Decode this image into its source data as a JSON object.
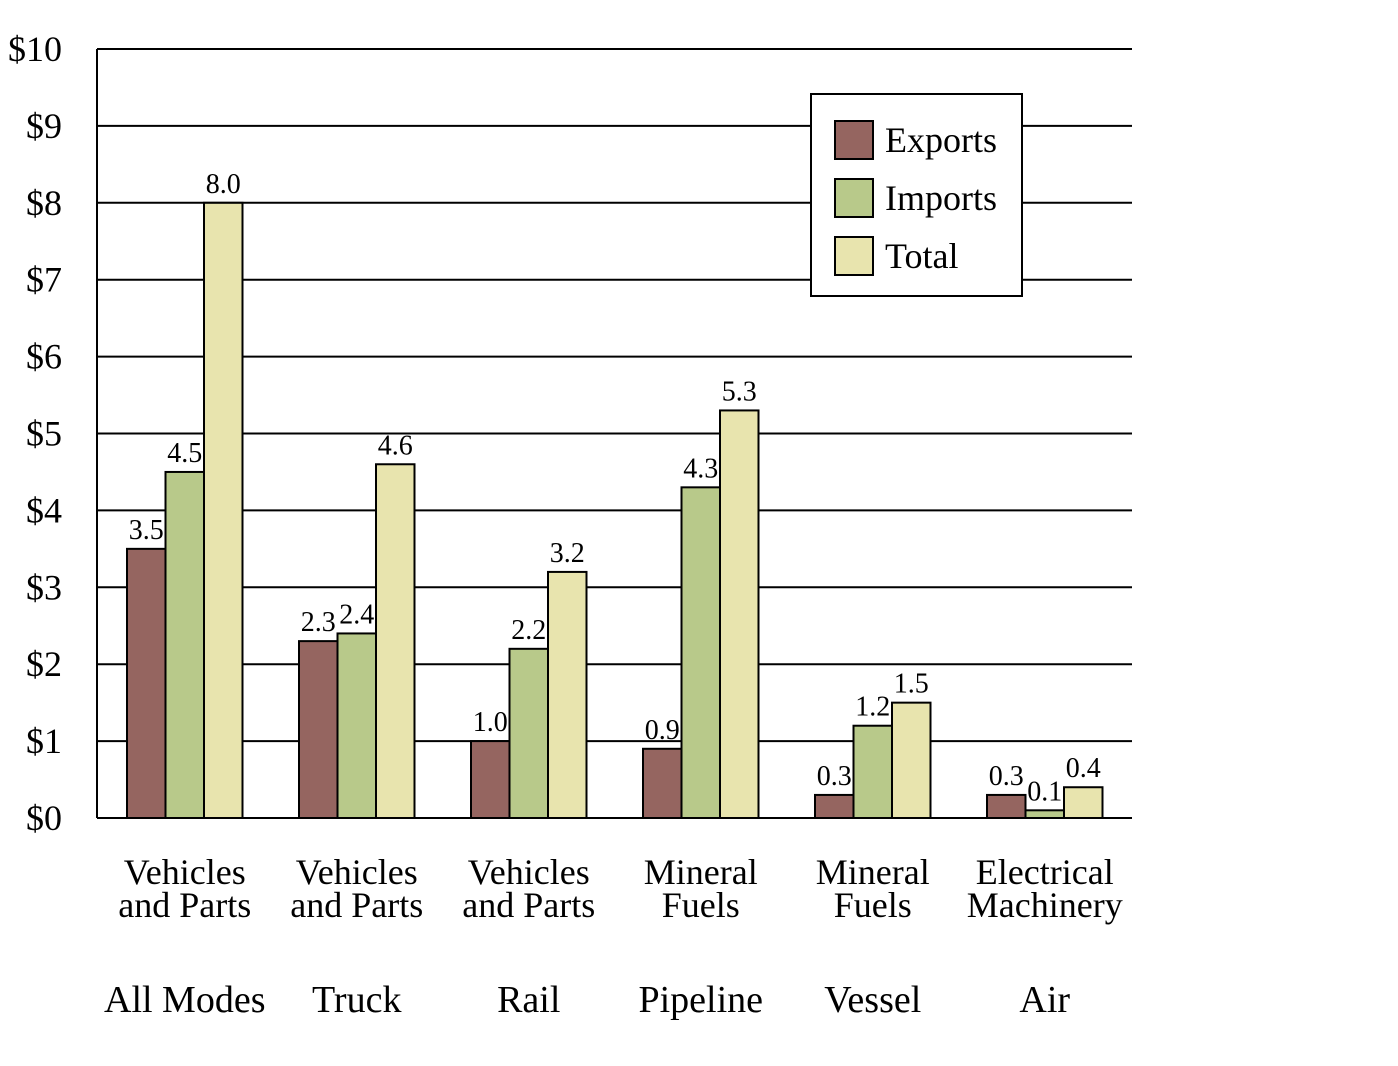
{
  "chart_data": {
    "type": "bar",
    "title": "",
    "xlabel": "",
    "ylabel": "",
    "ylim": [
      0,
      10
    ],
    "yticks": [
      {
        "value": 0,
        "label": "$0"
      },
      {
        "value": 1,
        "label": "$1"
      },
      {
        "value": 2,
        "label": "$2"
      },
      {
        "value": 3,
        "label": "$3"
      },
      {
        "value": 4,
        "label": "$4"
      },
      {
        "value": 5,
        "label": "$5"
      },
      {
        "value": 6,
        "label": "$6"
      },
      {
        "value": 7,
        "label": "$7"
      },
      {
        "value": 8,
        "label": "$8"
      },
      {
        "value": 9,
        "label": "$9"
      },
      {
        "value": 10,
        "label": "$10"
      }
    ],
    "grid": true,
    "legend_position": "top-right",
    "categories": [
      {
        "commodity": [
          "Vehicles",
          "and Parts"
        ],
        "mode": "All Modes"
      },
      {
        "commodity": [
          "Vehicles",
          "and Parts"
        ],
        "mode": "Truck"
      },
      {
        "commodity": [
          "Vehicles",
          "and Parts"
        ],
        "mode": "Rail"
      },
      {
        "commodity": [
          "Mineral",
          "Fuels"
        ],
        "mode": "Pipeline"
      },
      {
        "commodity": [
          "Mineral",
          "Fuels"
        ],
        "mode": "Vessel"
      },
      {
        "commodity": [
          "Electrical",
          "Machinery"
        ],
        "mode": "Air"
      }
    ],
    "series": [
      {
        "name": "Exports",
        "color": "#956560",
        "values": [
          3.5,
          2.3,
          1.0,
          0.9,
          0.3,
          0.3
        ],
        "labels": [
          "3.5",
          "2.3",
          "1.0",
          "0.9",
          "0.3",
          "0.3"
        ]
      },
      {
        "name": "Imports",
        "color": "#b8c98a",
        "values": [
          4.5,
          2.4,
          2.2,
          4.3,
          1.2,
          0.1
        ],
        "labels": [
          "4.5",
          "2.4",
          "2.2",
          "4.3",
          "1.2",
          "0.1"
        ]
      },
      {
        "name": "Total",
        "color": "#e8e4ae",
        "values": [
          8.0,
          4.6,
          3.2,
          5.3,
          1.5,
          0.4
        ],
        "labels": [
          "8.0",
          "4.6",
          "3.2",
          "5.3",
          "1.5",
          "0.4"
        ]
      }
    ]
  }
}
